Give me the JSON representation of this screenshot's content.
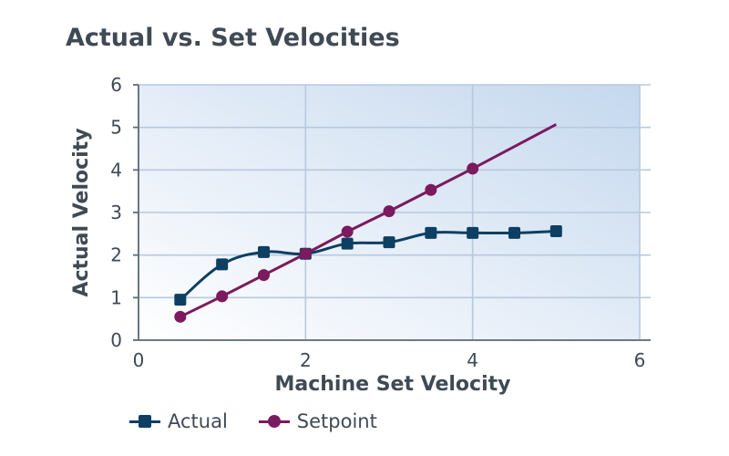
{
  "chart_data": {
    "type": "line",
    "title": "Actual vs. Set Velocities",
    "xlabel": "Machine Set Velocity",
    "ylabel": "Actual Velocity",
    "xlim": [
      0,
      6
    ],
    "ylim": [
      0,
      6
    ],
    "x_ticks": [
      "0",
      "2",
      "4",
      "6"
    ],
    "y_ticks": [
      "0",
      "1",
      "2",
      "3",
      "4",
      "5",
      "6"
    ],
    "grid": true,
    "legend_position": "bottom-left",
    "series": [
      {
        "name": "Actual",
        "color": "#0e3f63",
        "marker": "square",
        "smooth": true,
        "x": [
          0.5,
          1.0,
          1.5,
          2.0,
          2.5,
          3.0,
          3.5,
          4.0,
          4.5,
          5.0
        ],
        "y": [
          0.95,
          1.78,
          2.07,
          2.03,
          2.27,
          2.3,
          2.52,
          2.52,
          2.52,
          2.56
        ]
      },
      {
        "name": "Setpoint",
        "color": "#7b1a5e",
        "marker": "circle",
        "smooth": false,
        "x": [
          0.5,
          1.0,
          1.5,
          2.0,
          2.5,
          3.0,
          3.5,
          4.0,
          5.0
        ],
        "y": [
          0.55,
          1.03,
          1.53,
          2.03,
          2.55,
          3.03,
          3.53,
          4.03,
          5.07
        ],
        "marker_mask": [
          true,
          true,
          true,
          true,
          true,
          true,
          true,
          true,
          false
        ]
      }
    ]
  }
}
